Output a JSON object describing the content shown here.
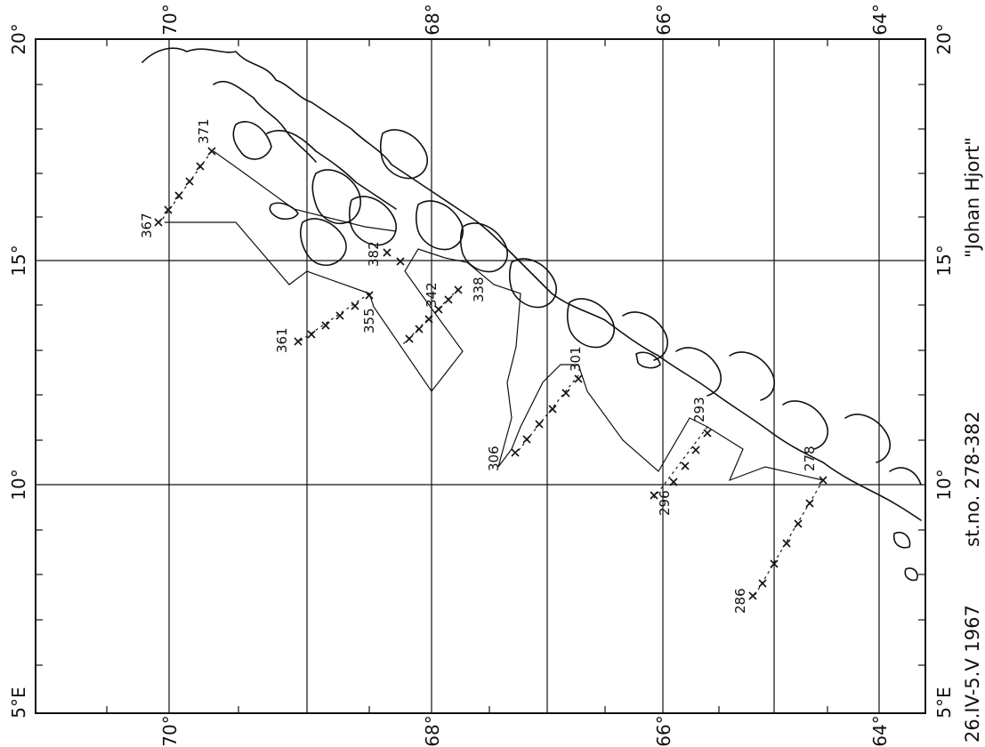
{
  "map": {
    "left_lat_ticks": [
      "20°",
      "15°",
      "10°",
      "5°E"
    ],
    "right_lat_ticks": [
      "20°",
      "15°",
      "10°",
      "5°E"
    ],
    "top_lon_ticks": [
      "70°",
      "68°",
      "66°",
      "64°"
    ],
    "bottom_lon_ticks": [
      "70°",
      "68°",
      "66°",
      "64°"
    ],
    "caption": {
      "vessel": "\"Johan Hjort\"",
      "stations": "st.no. 278-382",
      "dates": "26.IV-5.V 1967"
    },
    "station_labels": [
      "278",
      "286",
      "293",
      "296",
      "301",
      "306",
      "338",
      "342",
      "355",
      "361",
      "367",
      "371",
      "382"
    ]
  }
}
